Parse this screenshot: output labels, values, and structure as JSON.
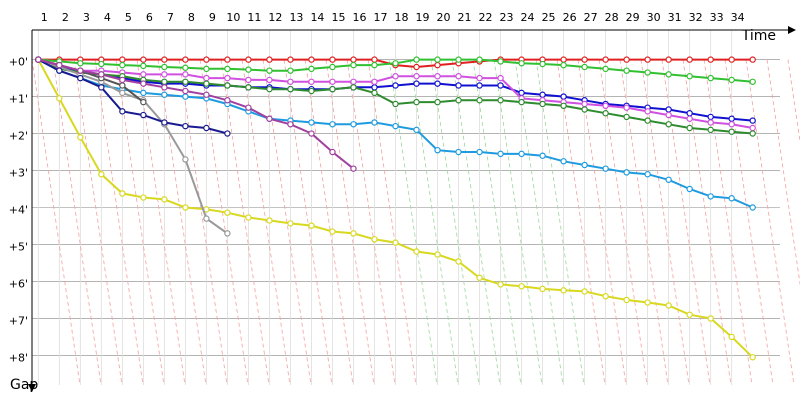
{
  "chart_data": {
    "type": "line",
    "x_label": "Time",
    "y_label": "Gap",
    "x": [
      1,
      2,
      3,
      4,
      5,
      6,
      7,
      8,
      9,
      10,
      11,
      12,
      13,
      14,
      15,
      16,
      17,
      18,
      19,
      20,
      21,
      22,
      23,
      24,
      25,
      26,
      27,
      28,
      29,
      30,
      31,
      32,
      33,
      34,
      35
    ],
    "xlim": [
      0.7,
      36.3
    ],
    "xticks": [
      1,
      2,
      3,
      4,
      5,
      6,
      7,
      8,
      9,
      10,
      11,
      12,
      13,
      14,
      15,
      16,
      17,
      18,
      19,
      20,
      21,
      22,
      23,
      24,
      25,
      26,
      27,
      28,
      29,
      30,
      31,
      32,
      33,
      34
    ],
    "ylim": [
      -0.8,
      8.8
    ],
    "yticks": [
      {
        "value": 0,
        "label": "+0'"
      },
      {
        "value": 1,
        "label": "+1'"
      },
      {
        "value": 2,
        "label": "+2'"
      },
      {
        "value": 3,
        "label": "+3'"
      },
      {
        "value": 4,
        "label": "+4'"
      },
      {
        "value": 5,
        "label": "+5'"
      },
      {
        "value": 6,
        "label": "+6'"
      },
      {
        "value": 7,
        "label": "+7'"
      },
      {
        "value": 8,
        "label": "+8'"
      }
    ],
    "grid": true,
    "y_inverted": true,
    "series": [
      {
        "color": "#e02020",
        "values": [
          0,
          0,
          0,
          0,
          0,
          0,
          0,
          0,
          0,
          0,
          0,
          0,
          0,
          0,
          0,
          0,
          0,
          0.15,
          0.2,
          0.15,
          0.1,
          0.05,
          0,
          0,
          0,
          0,
          0,
          0,
          0,
          0,
          0,
          0,
          0,
          0,
          0
        ]
      },
      {
        "color": "#30c030",
        "values": [
          0,
          0.05,
          0.1,
          0.12,
          0.15,
          0.17,
          0.2,
          0.22,
          0.25,
          0.25,
          0.27,
          0.3,
          0.3,
          0.25,
          0.2,
          0.15,
          0.15,
          0.1,
          0,
          0,
          0,
          0,
          0.05,
          0.1,
          0.12,
          0.15,
          0.2,
          0.25,
          0.3,
          0.35,
          0.4,
          0.45,
          0.5,
          0.55,
          0.6
        ]
      },
      {
        "color": "#1010d0",
        "values": [
          0,
          0.2,
          0.35,
          0.4,
          0.5,
          0.6,
          0.65,
          0.65,
          0.7,
          0.7,
          0.75,
          0.75,
          0.8,
          0.8,
          0.8,
          0.75,
          0.75,
          0.7,
          0.65,
          0.65,
          0.7,
          0.7,
          0.7,
          0.9,
          0.95,
          1.0,
          1.1,
          1.2,
          1.25,
          1.3,
          1.35,
          1.45,
          1.55,
          1.6,
          1.65
        ]
      },
      {
        "color": "#d050e0",
        "values": [
          0,
          0.15,
          0.3,
          0.3,
          0.35,
          0.4,
          0.4,
          0.4,
          0.5,
          0.5,
          0.55,
          0.55,
          0.6,
          0.6,
          0.6,
          0.6,
          0.6,
          0.45,
          0.45,
          0.45,
          0.45,
          0.5,
          0.5,
          1.05,
          1.1,
          1.15,
          1.2,
          1.25,
          1.3,
          1.4,
          1.5,
          1.6,
          1.7,
          1.75,
          1.85
        ]
      },
      {
        "color": "#2e8b2e",
        "values": [
          0,
          0.25,
          0.35,
          0.4,
          0.45,
          0.55,
          0.6,
          0.6,
          0.65,
          0.7,
          0.75,
          0.8,
          0.8,
          0.85,
          0.8,
          0.75,
          0.9,
          1.2,
          1.15,
          1.15,
          1.1,
          1.1,
          1.1,
          1.15,
          1.2,
          1.25,
          1.35,
          1.45,
          1.55,
          1.65,
          1.75,
          1.85,
          1.9,
          1.95,
          2.0
        ]
      },
      {
        "color": "#1e9be0",
        "values": [
          0,
          0.3,
          0.5,
          0.7,
          0.8,
          0.9,
          0.95,
          1.0,
          1.05,
          1.2,
          1.4,
          1.6,
          1.65,
          1.7,
          1.75,
          1.75,
          1.7,
          1.8,
          1.9,
          2.45,
          2.5,
          2.5,
          2.55,
          2.55,
          2.6,
          2.75,
          2.85,
          2.95,
          3.05,
          3.1,
          3.25,
          3.5,
          3.7,
          3.75,
          4.0
        ]
      },
      {
        "color": "#d8d820",
        "values": [
          0,
          1.05,
          2.1,
          3.1,
          3.62,
          3.73,
          3.78,
          4.0,
          4.05,
          4.14,
          4.27,
          4.35,
          4.43,
          4.49,
          4.65,
          4.7,
          4.86,
          4.95,
          5.19,
          5.27,
          5.46,
          5.9,
          6.08,
          6.13,
          6.2,
          6.24,
          6.27,
          6.4,
          6.5,
          6.57,
          6.65,
          6.9,
          7.0,
          7.5,
          8.05
        ]
      },
      {
        "color": "#999999",
        "values": [
          0,
          0.2,
          0.4,
          0.6,
          0.9,
          1.1,
          1.75,
          2.7,
          4.3,
          4.7,
          null,
          null,
          null,
          null,
          null,
          null,
          null,
          null,
          null,
          null,
          null,
          null,
          null,
          null,
          null,
          null,
          null,
          null,
          null,
          null,
          null,
          null,
          null,
          null,
          null
        ]
      },
      {
        "color": "#555555",
        "values": [
          0,
          0.15,
          0.3,
          0.5,
          0.7,
          1.15,
          null,
          null,
          null,
          null,
          null,
          null,
          null,
          null,
          null,
          null,
          null,
          null,
          null,
          null,
          null,
          null,
          null,
          null,
          null,
          null,
          null,
          null,
          null,
          null,
          null,
          null,
          null,
          null,
          null
        ]
      },
      {
        "color": "#1a1a90",
        "values": [
          0,
          0.3,
          0.5,
          0.75,
          1.4,
          1.5,
          1.7,
          1.8,
          1.85,
          2.0,
          null,
          null,
          null,
          null,
          null,
          null,
          null,
          null,
          null,
          null,
          null,
          null,
          null,
          null,
          null,
          null,
          null,
          null,
          null,
          null,
          null,
          null,
          null,
          null,
          null
        ]
      },
      {
        "color": "#a040a0",
        "values": [
          0,
          0.15,
          0.3,
          0.4,
          0.55,
          0.65,
          0.75,
          0.85,
          0.95,
          1.1,
          1.3,
          1.6,
          1.75,
          2.0,
          2.5,
          2.95,
          null,
          null,
          null,
          null,
          null,
          null,
          null,
          null,
          null,
          null,
          null,
          null,
          null,
          null,
          null,
          null,
          null,
          null,
          null
        ]
      }
    ]
  }
}
